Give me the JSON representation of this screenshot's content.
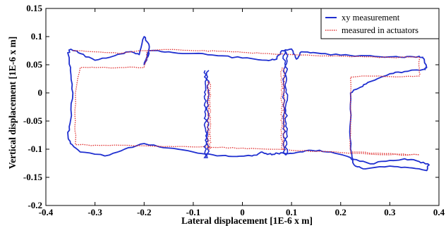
{
  "chart_data": {
    "type": "line",
    "xlabel": "Lateral displacement [1E-6 x m]",
    "ylabel": "Vertical displacement [1E-6 x m]",
    "xlim": [
      -0.4,
      0.4
    ],
    "ylim": [
      -0.2,
      0.15
    ],
    "x_ticks": [
      -0.4,
      -0.3,
      -0.2,
      -0.1,
      0,
      0.1,
      0.2,
      0.3,
      0.4
    ],
    "y_ticks": [
      -0.2,
      -0.15,
      -0.1,
      -0.05,
      0,
      0.05,
      0.1,
      0.15
    ],
    "x_tick_labels": [
      "-0.4",
      "-0.3",
      "-0.2",
      "-0.1",
      "0",
      "0.1",
      "0.2",
      "0.3",
      "0.4"
    ],
    "y_tick_labels": [
      "-0.2",
      "-0.15",
      "-0.1",
      "-0.05",
      "0",
      "0.05",
      "0.1",
      "0.15"
    ],
    "grid": false,
    "legend": {
      "position": "top-right"
    },
    "series": [
      {
        "name": "xy measurement",
        "color": "#1f2fd0",
        "style": "solid",
        "points": [
          [
            -0.35,
            0.078
          ],
          [
            -0.33,
            0.07
          ],
          [
            -0.3,
            0.058
          ],
          [
            -0.26,
            0.066
          ],
          [
            -0.23,
            0.073
          ],
          [
            -0.21,
            0.068
          ],
          [
            -0.2,
            0.1
          ],
          [
            -0.19,
            0.085
          ],
          [
            -0.19,
            0.07
          ],
          [
            -0.2,
            0.05
          ],
          [
            -0.19,
            0.075
          ],
          [
            -0.15,
            0.073
          ],
          [
            -0.1,
            0.07
          ],
          [
            -0.05,
            0.066
          ],
          [
            0,
            0.062
          ],
          [
            0.05,
            0.058
          ],
          [
            0.07,
            0.06
          ],
          [
            0.08,
            0.075
          ],
          [
            0.1,
            0.078
          ],
          [
            0.11,
            0.06
          ],
          [
            0.12,
            0.073
          ],
          [
            0.15,
            0.071
          ],
          [
            0.2,
            0.067
          ],
          [
            0.25,
            0.066
          ],
          [
            0.3,
            0.064
          ],
          [
            0.33,
            0.063
          ],
          [
            0.36,
            0.065
          ],
          [
            0.37,
            0.06
          ],
          [
            0.375,
            0.045
          ],
          [
            0.37,
            0.042
          ],
          [
            0.33,
            0.038
          ],
          [
            0.3,
            0.034
          ],
          [
            0.26,
            0.02
          ],
          [
            0.24,
            0.01
          ],
          [
            0.22,
            0.0
          ],
          [
            0.22,
            -0.05
          ],
          [
            0.22,
            -0.1
          ],
          [
            0.225,
            -0.118
          ],
          [
            0.26,
            -0.126
          ],
          [
            0.3,
            -0.12
          ],
          [
            0.33,
            -0.117
          ],
          [
            0.36,
            -0.122
          ],
          [
            0.38,
            -0.128
          ],
          [
            0.375,
            -0.138
          ],
          [
            0.34,
            -0.133
          ],
          [
            0.3,
            -0.13
          ],
          [
            0.25,
            -0.135
          ],
          [
            0.23,
            -0.13
          ],
          [
            0.22,
            -0.115
          ],
          [
            0.18,
            -0.105
          ],
          [
            0.14,
            -0.102
          ],
          [
            0.11,
            -0.106
          ],
          [
            0.09,
            -0.108
          ],
          [
            0.07,
            -0.107
          ],
          [
            0.06,
            -0.11
          ],
          [
            0.04,
            -0.105
          ],
          [
            0.02,
            -0.112
          ],
          [
            -0.02,
            -0.113
          ],
          [
            -0.06,
            -0.11
          ],
          [
            -0.1,
            -0.105
          ],
          [
            -0.15,
            -0.098
          ],
          [
            -0.2,
            -0.09
          ],
          [
            -0.24,
            -0.1
          ],
          [
            -0.28,
            -0.112
          ],
          [
            -0.33,
            -0.105
          ],
          [
            -0.35,
            -0.09
          ],
          [
            -0.355,
            -0.075
          ],
          [
            -0.35,
            -0.05
          ],
          [
            -0.345,
            0.0
          ],
          [
            -0.35,
            0.04
          ],
          [
            -0.355,
            0.07
          ],
          [
            -0.35,
            0.078
          ]
        ]
      },
      {
        "name": "measured in actuators",
        "color": "#e03030",
        "style": "dotted",
        "points": [
          [
            -0.345,
            0.075
          ],
          [
            -0.3,
            0.073
          ],
          [
            -0.25,
            0.07
          ],
          [
            -0.2,
            0.075
          ],
          [
            -0.15,
            0.077
          ],
          [
            -0.1,
            0.075
          ],
          [
            -0.05,
            0.074
          ],
          [
            0,
            0.072
          ],
          [
            0.05,
            0.07
          ],
          [
            0.1,
            0.068
          ],
          [
            0.15,
            0.066
          ],
          [
            0.2,
            0.065
          ],
          [
            0.25,
            0.064
          ],
          [
            0.3,
            0.063
          ],
          [
            0.36,
            0.063
          ],
          [
            0.36,
            0.045
          ],
          [
            0.36,
            0.03
          ],
          [
            0.3,
            0.029
          ],
          [
            0.25,
            0.03
          ],
          [
            0.22,
            0.028
          ],
          [
            0.22,
            -0.05
          ],
          [
            0.22,
            -0.105
          ],
          [
            0.27,
            -0.107
          ],
          [
            0.32,
            -0.109
          ],
          [
            0.36,
            -0.11
          ],
          [
            0.3,
            -0.11
          ],
          [
            0.2,
            -0.106
          ],
          [
            0.15,
            -0.104
          ],
          [
            0.1,
            -0.102
          ],
          [
            0.05,
            -0.1
          ],
          [
            0,
            -0.098
          ],
          [
            -0.05,
            -0.097
          ],
          [
            -0.1,
            -0.096
          ],
          [
            -0.15,
            -0.095
          ],
          [
            -0.2,
            -0.094
          ],
          [
            -0.25,
            -0.093
          ],
          [
            -0.3,
            -0.093
          ],
          [
            -0.34,
            -0.092
          ],
          [
            -0.34,
            -0.05
          ],
          [
            -0.34,
            0.0
          ],
          [
            -0.33,
            0.045
          ],
          [
            -0.3,
            0.045
          ],
          [
            -0.25,
            0.045
          ],
          [
            -0.2,
            0.045
          ],
          [
            -0.195,
            0.06
          ],
          [
            -0.195,
            0.075
          ]
        ]
      }
    ],
    "vertical_traces": [
      {
        "series": "xy measurement",
        "x": -0.075,
        "y_top": 0.04,
        "y_bottom": -0.115
      },
      {
        "series": "xy measurement",
        "x": 0.085,
        "y_top": 0.075,
        "y_bottom": -0.11
      },
      {
        "series": "measured in actuators",
        "x": -0.07,
        "y_top": 0.02,
        "y_bottom": -0.1
      },
      {
        "series": "measured in actuators",
        "x": 0.08,
        "y_top": 0.045,
        "y_bottom": -0.1
      }
    ]
  }
}
